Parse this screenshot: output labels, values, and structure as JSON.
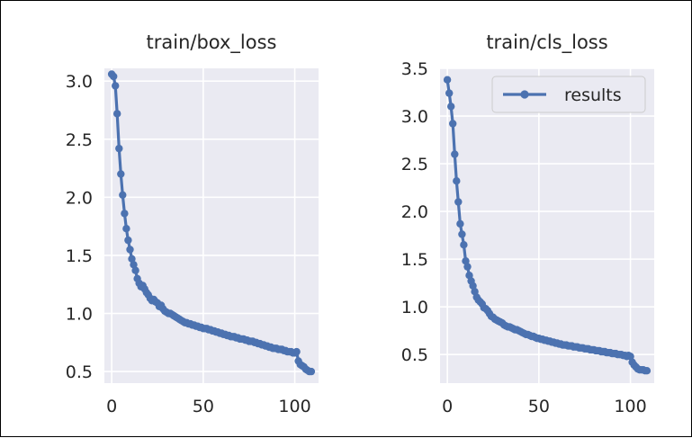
{
  "chart_data": [
    {
      "type": "line",
      "title": "train/box_loss",
      "xlabel": "",
      "ylabel": "",
      "xlim": [
        -4,
        113
      ],
      "ylim": [
        0.4,
        3.11
      ],
      "xticks": [
        0,
        50,
        100
      ],
      "xtick_labels": [
        "0",
        "50",
        "100"
      ],
      "yticks": [
        0.5,
        1.0,
        1.5,
        2.0,
        2.5,
        3.0
      ],
      "ytick_labels": [
        "0.5",
        "1.0",
        "1.5",
        "2.0",
        "2.5",
        "3.0"
      ],
      "grid": true,
      "series": [
        {
          "color": "#4c72b0",
          "x": [
            0,
            1,
            2,
            3,
            4,
            5,
            6,
            7,
            8,
            9,
            10,
            11,
            12,
            13,
            14,
            15,
            16,
            17,
            18,
            19,
            20,
            21,
            22,
            23,
            24,
            25,
            26,
            27,
            28,
            29,
            30,
            31,
            32,
            33,
            34,
            35,
            36,
            37,
            38,
            39,
            40,
            41,
            42,
            43,
            44,
            45,
            46,
            47,
            48,
            49,
            50,
            51,
            52,
            53,
            54,
            55,
            56,
            57,
            58,
            59,
            60,
            61,
            62,
            63,
            64,
            65,
            66,
            67,
            68,
            69,
            70,
            71,
            72,
            73,
            74,
            75,
            76,
            77,
            78,
            79,
            80,
            81,
            82,
            83,
            84,
            85,
            86,
            87,
            88,
            89,
            90,
            91,
            92,
            93,
            94,
            95,
            96,
            97,
            98,
            99,
            100,
            101,
            102,
            103,
            104,
            105,
            106,
            107,
            108,
            109
          ],
          "y": [
            3.06,
            3.04,
            2.96,
            2.72,
            2.42,
            2.2,
            2.02,
            1.86,
            1.73,
            1.63,
            1.55,
            1.47,
            1.42,
            1.37,
            1.3,
            1.26,
            1.23,
            1.24,
            1.21,
            1.18,
            1.16,
            1.13,
            1.11,
            1.12,
            1.1,
            1.09,
            1.06,
            1.07,
            1.04,
            1.02,
            1.01,
            1.0,
            1.0,
            0.99,
            0.98,
            0.97,
            0.96,
            0.95,
            0.94,
            0.93,
            0.92,
            0.92,
            0.91,
            0.91,
            0.9,
            0.9,
            0.89,
            0.89,
            0.88,
            0.88,
            0.87,
            0.87,
            0.87,
            0.86,
            0.86,
            0.85,
            0.85,
            0.84,
            0.84,
            0.83,
            0.83,
            0.82,
            0.82,
            0.81,
            0.81,
            0.8,
            0.8,
            0.8,
            0.79,
            0.79,
            0.78,
            0.78,
            0.78,
            0.77,
            0.77,
            0.76,
            0.76,
            0.76,
            0.75,
            0.75,
            0.74,
            0.74,
            0.73,
            0.73,
            0.72,
            0.72,
            0.71,
            0.71,
            0.7,
            0.7,
            0.7,
            0.69,
            0.69,
            0.69,
            0.68,
            0.68,
            0.67,
            0.67,
            0.67,
            0.66,
            0.66,
            0.67,
            0.59,
            0.56,
            0.55,
            0.54,
            0.52,
            0.51,
            0.5,
            0.5
          ]
        }
      ]
    },
    {
      "type": "line",
      "title": "train/cls_loss",
      "xlabel": "",
      "ylabel": "",
      "xlim": [
        -4,
        113
      ],
      "ylim": [
        0.2,
        3.5
      ],
      "xticks": [
        0,
        50,
        100
      ],
      "xtick_labels": [
        "0",
        "50",
        "100"
      ],
      "yticks": [
        0.5,
        1.0,
        1.5,
        2.0,
        2.5,
        3.0,
        3.5
      ],
      "ytick_labels": [
        "0.5",
        "1.0",
        "1.5",
        "2.0",
        "2.5",
        "3.0",
        "3.5"
      ],
      "grid": true,
      "legend_position": "top-right",
      "series": [
        {
          "name": "results",
          "color": "#4c72b0",
          "x": [
            0,
            1,
            2,
            3,
            4,
            5,
            6,
            7,
            8,
            9,
            10,
            11,
            12,
            13,
            14,
            15,
            16,
            17,
            18,
            19,
            20,
            21,
            22,
            23,
            24,
            25,
            26,
            27,
            28,
            29,
            30,
            31,
            32,
            33,
            34,
            35,
            36,
            37,
            38,
            39,
            40,
            41,
            42,
            43,
            44,
            45,
            46,
            47,
            48,
            49,
            50,
            51,
            52,
            53,
            54,
            55,
            56,
            57,
            58,
            59,
            60,
            61,
            62,
            63,
            64,
            65,
            66,
            67,
            68,
            69,
            70,
            71,
            72,
            73,
            74,
            75,
            76,
            77,
            78,
            79,
            80,
            81,
            82,
            83,
            84,
            85,
            86,
            87,
            88,
            89,
            90,
            91,
            92,
            93,
            94,
            95,
            96,
            97,
            98,
            99,
            100,
            101,
            102,
            103,
            104,
            105,
            106,
            107,
            108,
            109
          ],
          "y": [
            3.38,
            3.24,
            3.1,
            2.92,
            2.6,
            2.32,
            2.1,
            1.87,
            1.76,
            1.65,
            1.48,
            1.42,
            1.33,
            1.27,
            1.22,
            1.16,
            1.1,
            1.07,
            1.05,
            1.03,
            0.99,
            0.98,
            0.96,
            0.93,
            0.9,
            0.89,
            0.87,
            0.86,
            0.85,
            0.84,
            0.83,
            0.81,
            0.8,
            0.79,
            0.79,
            0.78,
            0.77,
            0.76,
            0.76,
            0.75,
            0.74,
            0.73,
            0.72,
            0.71,
            0.71,
            0.7,
            0.69,
            0.69,
            0.68,
            0.67,
            0.67,
            0.66,
            0.66,
            0.65,
            0.65,
            0.64,
            0.64,
            0.63,
            0.63,
            0.62,
            0.62,
            0.61,
            0.61,
            0.6,
            0.6,
            0.6,
            0.59,
            0.59,
            0.59,
            0.58,
            0.58,
            0.58,
            0.57,
            0.57,
            0.57,
            0.56,
            0.56,
            0.56,
            0.55,
            0.55,
            0.55,
            0.54,
            0.54,
            0.54,
            0.53,
            0.53,
            0.53,
            0.52,
            0.52,
            0.52,
            0.51,
            0.51,
            0.51,
            0.5,
            0.5,
            0.5,
            0.49,
            0.49,
            0.48,
            0.49,
            0.48,
            0.42,
            0.39,
            0.37,
            0.35,
            0.34,
            0.34,
            0.34,
            0.33,
            0.33
          ]
        }
      ]
    }
  ]
}
